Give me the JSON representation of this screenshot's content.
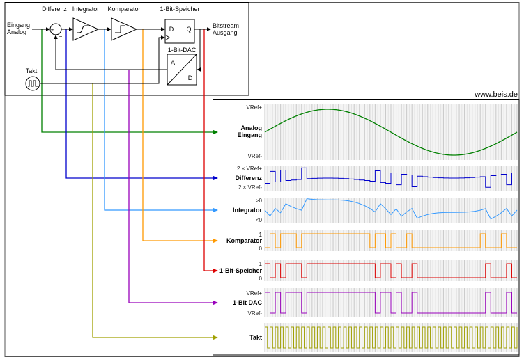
{
  "site": {
    "watermark": "www.beis.de"
  },
  "diagram": {
    "input_label_line1": "Eingang",
    "input_label_line2": "Analog",
    "sum_plus": "+",
    "sum_minus": "−",
    "block_labels": {
      "differenz": "Differenz",
      "integrator": "Integrator",
      "komparator": "Komparator",
      "speicher": "1-Bit-Speicher",
      "dac": "1-Bit-DAC",
      "takt": "Takt"
    },
    "flipflop": {
      "d": "D",
      "q": "Q"
    },
    "dac_pins": {
      "a": "A",
      "d": "D"
    },
    "output_label_line1": "Bitstream",
    "output_label_line2": "Ausgang"
  },
  "waveforms": {
    "clocks": 48,
    "analog_input": {
      "shape": "sine",
      "cycles": 1,
      "amplitude": "VRef"
    },
    "rows": [
      {
        "id": "analog",
        "label_lines": [
          "Analog",
          "Eingang"
        ],
        "top": "VRef+",
        "bottom": "VRef-",
        "color": "#008000"
      },
      {
        "id": "differenz",
        "label_lines": [
          "Differenz"
        ],
        "top": "2 × VRef+",
        "bottom": "2 × VRef-",
        "color": "#0000cc"
      },
      {
        "id": "integrator",
        "label_lines": [
          "Integrator"
        ],
        "top": ">0",
        "bottom": "<0",
        "color": "#3399ff"
      },
      {
        "id": "komparator",
        "label_lines": [
          "Komparator"
        ],
        "top": "1",
        "bottom": "0",
        "color": "#ff9900"
      },
      {
        "id": "speicher",
        "label_lines": [
          "1-Bit-Speicher"
        ],
        "top": "1",
        "bottom": "0",
        "color": "#dd0000"
      },
      {
        "id": "dac",
        "label_lines": [
          "1-Bit DAC"
        ],
        "top": "VRef+",
        "bottom": "VRef-",
        "color": "#9900bb"
      },
      {
        "id": "takt",
        "label_lines": [
          "Takt"
        ],
        "top": "",
        "bottom": "",
        "color": "#a0a000"
      }
    ],
    "komparator_bits": [
      0,
      1,
      0,
      1,
      1,
      1,
      0,
      1,
      1,
      1,
      1,
      1,
      1,
      1,
      1,
      1,
      1,
      1,
      1,
      1,
      0,
      1,
      1,
      0,
      1,
      0,
      0,
      1,
      0,
      0,
      0,
      0,
      0,
      0,
      0,
      0,
      0,
      0,
      0,
      0,
      0,
      1,
      0,
      0,
      0,
      1,
      0,
      0
    ],
    "speicher_bits": [
      1,
      0,
      1,
      0,
      1,
      1,
      1,
      0,
      1,
      1,
      1,
      1,
      1,
      1,
      1,
      1,
      1,
      1,
      1,
      1,
      1,
      0,
      1,
      1,
      0,
      1,
      0,
      0,
      1,
      0,
      0,
      0,
      0,
      0,
      0,
      0,
      0,
      0,
      0,
      0,
      0,
      0,
      1,
      0,
      0,
      0,
      1,
      0
    ],
    "differenz_values": [
      -0.93,
      1.2,
      -0.68,
      1.44,
      -0.44,
      -0.34,
      -0.25,
      1.83,
      -0.1,
      -0.05,
      -0.02,
      0,
      0,
      -0.02,
      -0.05,
      -0.1,
      -0.17,
      -0.25,
      -0.34,
      -0.44,
      -0.56,
      1.32,
      -0.8,
      -0.93,
      0.93,
      -1.2,
      0.68,
      0.56,
      -1.56,
      0.34,
      0.25,
      0.17,
      0.1,
      0.05,
      0.02,
      0,
      0,
      0.02,
      0.05,
      0.1,
      0.17,
      0.25,
      -1.66,
      0.44,
      0.56,
      0.68,
      -1.2,
      0.93
    ],
    "integrator_values": [
      -0.93,
      0.26,
      -0.42,
      1.02,
      0.58,
      0.24,
      -0.01,
      1.82,
      1.72,
      1.67,
      1.65,
      1.64,
      1.64,
      1.62,
      1.57,
      1.47,
      1.3,
      1.05,
      0.71,
      0.27,
      -0.29,
      1.03,
      0.22,
      -0.71,
      0.22,
      -0.97,
      -0.29,
      0.27,
      -1.29,
      -0.95,
      -0.7,
      -0.53,
      -0.43,
      -0.38,
      -0.36,
      -0.36,
      -0.35,
      -0.33,
      -0.28,
      -0.18,
      -0.01,
      0.24,
      -1.42,
      -0.98,
      -0.42,
      0.26,
      -0.93,
      0
    ]
  }
}
